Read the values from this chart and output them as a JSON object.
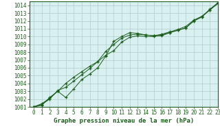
{
  "title": "Graphe pression niveau de la mer (hPa)",
  "bg_color": "#d8f0f0",
  "plot_bg_color": "#d8f0f0",
  "fig_bg_color": "#ffffff",
  "grid_color": "#b0cccc",
  "line_color": "#1a5c1a",
  "marker": "+",
  "xlim": [
    -0.5,
    23.0
  ],
  "ylim": [
    1001.0,
    1014.5
  ],
  "yticks": [
    1001,
    1002,
    1003,
    1004,
    1005,
    1006,
    1007,
    1008,
    1009,
    1010,
    1011,
    1012,
    1013,
    1014
  ],
  "xticks": [
    0,
    1,
    2,
    3,
    4,
    5,
    6,
    7,
    8,
    9,
    10,
    11,
    12,
    13,
    14,
    15,
    16,
    17,
    18,
    19,
    20,
    21,
    22,
    23
  ],
  "series1": [
    1001.0,
    1001.4,
    1002.1,
    1003.0,
    1002.2,
    1003.3,
    1004.5,
    1005.2,
    1006.0,
    1007.5,
    1009.4,
    1010.0,
    1010.5,
    1010.4,
    1010.2,
    1010.1,
    1010.1,
    1010.5,
    1010.8,
    1011.1,
    1012.0,
    1012.5,
    1013.5,
    1014.3
  ],
  "series2": [
    1001.0,
    1001.3,
    1002.0,
    1003.1,
    1003.5,
    1004.3,
    1005.1,
    1005.9,
    1006.8,
    1008.1,
    1009.0,
    1009.8,
    1010.2,
    1010.3,
    1010.2,
    1010.1,
    1010.3,
    1010.6,
    1010.9,
    1011.3,
    1012.1,
    1012.6,
    1013.4,
    1014.3
  ],
  "series3": [
    1001.0,
    1001.2,
    1002.2,
    1003.0,
    1004.0,
    1004.8,
    1005.5,
    1006.2,
    1006.8,
    1007.6,
    1008.2,
    1009.3,
    1009.9,
    1010.1,
    1010.0,
    1010.0,
    1010.2,
    1010.5,
    1010.8,
    1011.1,
    1012.0,
    1012.5,
    1013.4,
    1014.2
  ],
  "tick_fontsize": 5.5,
  "title_fontsize": 6.5
}
